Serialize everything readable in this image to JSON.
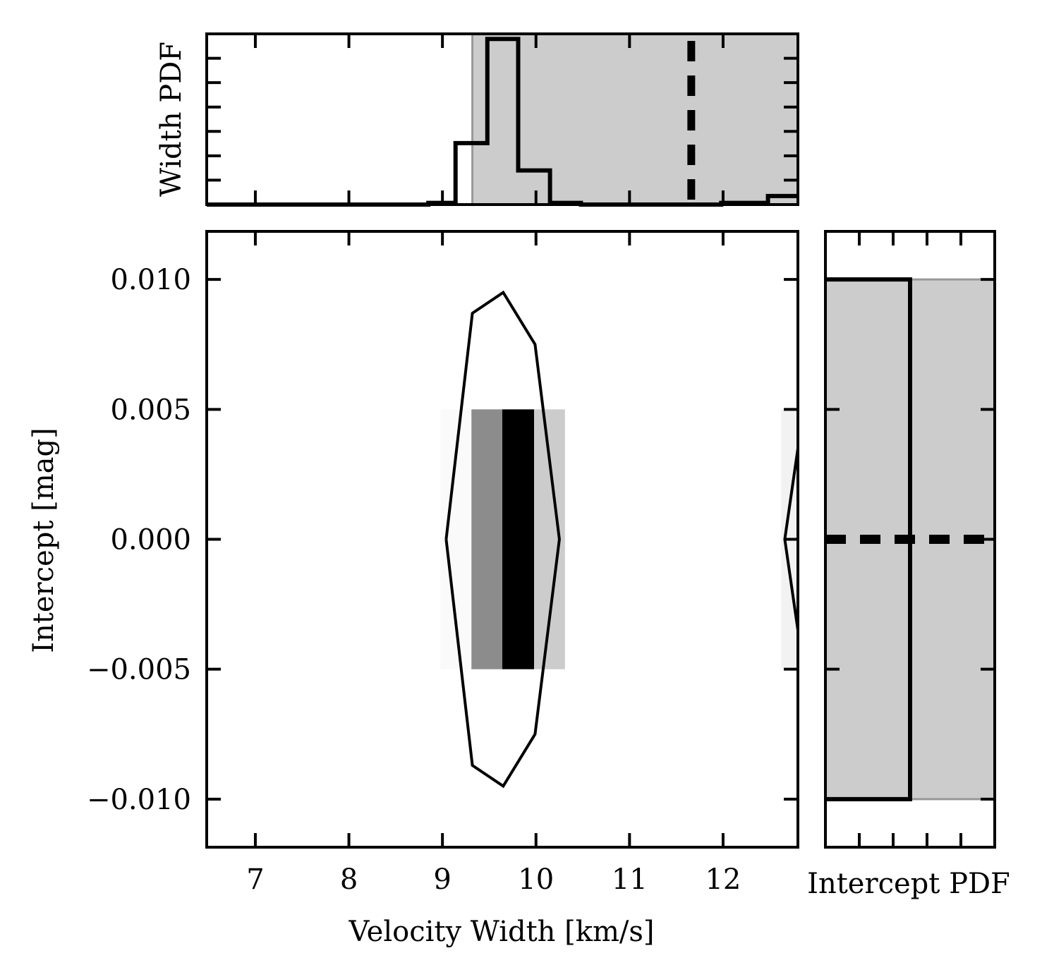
{
  "chart_data": [
    {
      "type": "heatmap",
      "panel": "joint",
      "xlabel": "Velocity Width [km/s]",
      "ylabel": "Intercept [mag]",
      "xlim": [
        6.48,
        12.8
      ],
      "ylim": [
        -0.01185,
        0.01185
      ],
      "xticks": [
        7,
        8,
        9,
        10,
        11,
        12
      ],
      "xtick_labels": [
        "7",
        "8",
        "9",
        "10",
        "11",
        "12"
      ],
      "yticks": [
        -0.01,
        -0.005,
        0.0,
        0.005,
        0.01
      ],
      "ytick_labels": [
        "−0.010",
        "−0.005",
        "0.000",
        "0.005",
        "0.010"
      ],
      "grid": false,
      "cells": [
        {
          "x0": 8.98,
          "x1": 9.31,
          "y0": -0.005,
          "y1": 0.005,
          "density": 0.02
        },
        {
          "x0": 9.31,
          "x1": 9.64,
          "y0": -0.005,
          "y1": 0.005,
          "density": 0.45
        },
        {
          "x0": 9.64,
          "x1": 9.98,
          "y0": -0.005,
          "y1": 0.005,
          "density": 1.0
        },
        {
          "x0": 9.98,
          "x1": 10.31,
          "y0": -0.005,
          "y1": 0.005,
          "density": 0.2
        },
        {
          "x0": 12.62,
          "x1": 12.8,
          "y0": -0.005,
          "y1": 0.005,
          "density": 0.05
        }
      ],
      "contours": [
        [
          [
            9.04,
            0.0
          ],
          [
            9.32,
            0.0087
          ],
          [
            9.65,
            0.0095
          ],
          [
            9.99,
            0.0075
          ],
          [
            10.25,
            0.0
          ],
          [
            9.99,
            -0.0075
          ],
          [
            9.65,
            -0.0095
          ],
          [
            9.32,
            -0.0087
          ],
          [
            9.04,
            0.0
          ]
        ],
        [
          [
            12.8,
            0.0035
          ],
          [
            12.66,
            0.0
          ],
          [
            12.8,
            -0.0035
          ]
        ]
      ]
    },
    {
      "type": "histogram",
      "panel": "top-marginal",
      "ylabel": "Width PDF",
      "xlim": [
        6.48,
        12.8
      ],
      "ylim": [
        0,
        1.0
      ],
      "shaded_interval": [
        9.32,
        12.8
      ],
      "reference_value": 11.66,
      "step_edges": [
        6.48,
        8.85,
        9.14,
        9.48,
        9.81,
        10.15,
        10.48,
        11.65,
        11.98,
        12.48,
        12.8
      ],
      "step_values": [
        0.0,
        0.01,
        0.36,
        0.97,
        0.2,
        0.01,
        0.0,
        0.0,
        0.01,
        0.05
      ]
    },
    {
      "type": "histogram",
      "panel": "right-marginal",
      "orientation": "horizontal",
      "xlabel": "Intercept PDF",
      "ylim": [
        -0.01185,
        0.01185
      ],
      "xlim": [
        0,
        1.0
      ],
      "shaded_interval": [
        -0.01,
        0.01
      ],
      "reference_value": 0.0,
      "step_edges": [
        -0.01,
        0.01
      ],
      "step_values": [
        0.5
      ]
    }
  ]
}
